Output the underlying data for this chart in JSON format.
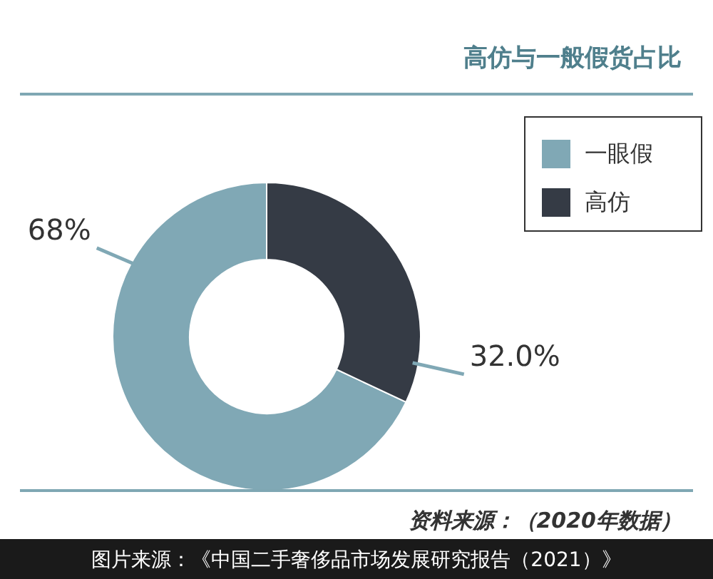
{
  "chart_data": {
    "type": "donut",
    "title": "高仿与一般假货占比",
    "categories": [
      "一眼假",
      "高仿"
    ],
    "values": [
      68,
      32
    ],
    "colors": [
      "#80a8b5",
      "#353b45"
    ],
    "value_labels": [
      "68%",
      "32.0%"
    ],
    "legend": "top right",
    "annotations": [
      "资料来源：（2020年数据）",
      "图片来源：《中国二手奢侈品市场发展研究报告（2021）》"
    ]
  }
}
